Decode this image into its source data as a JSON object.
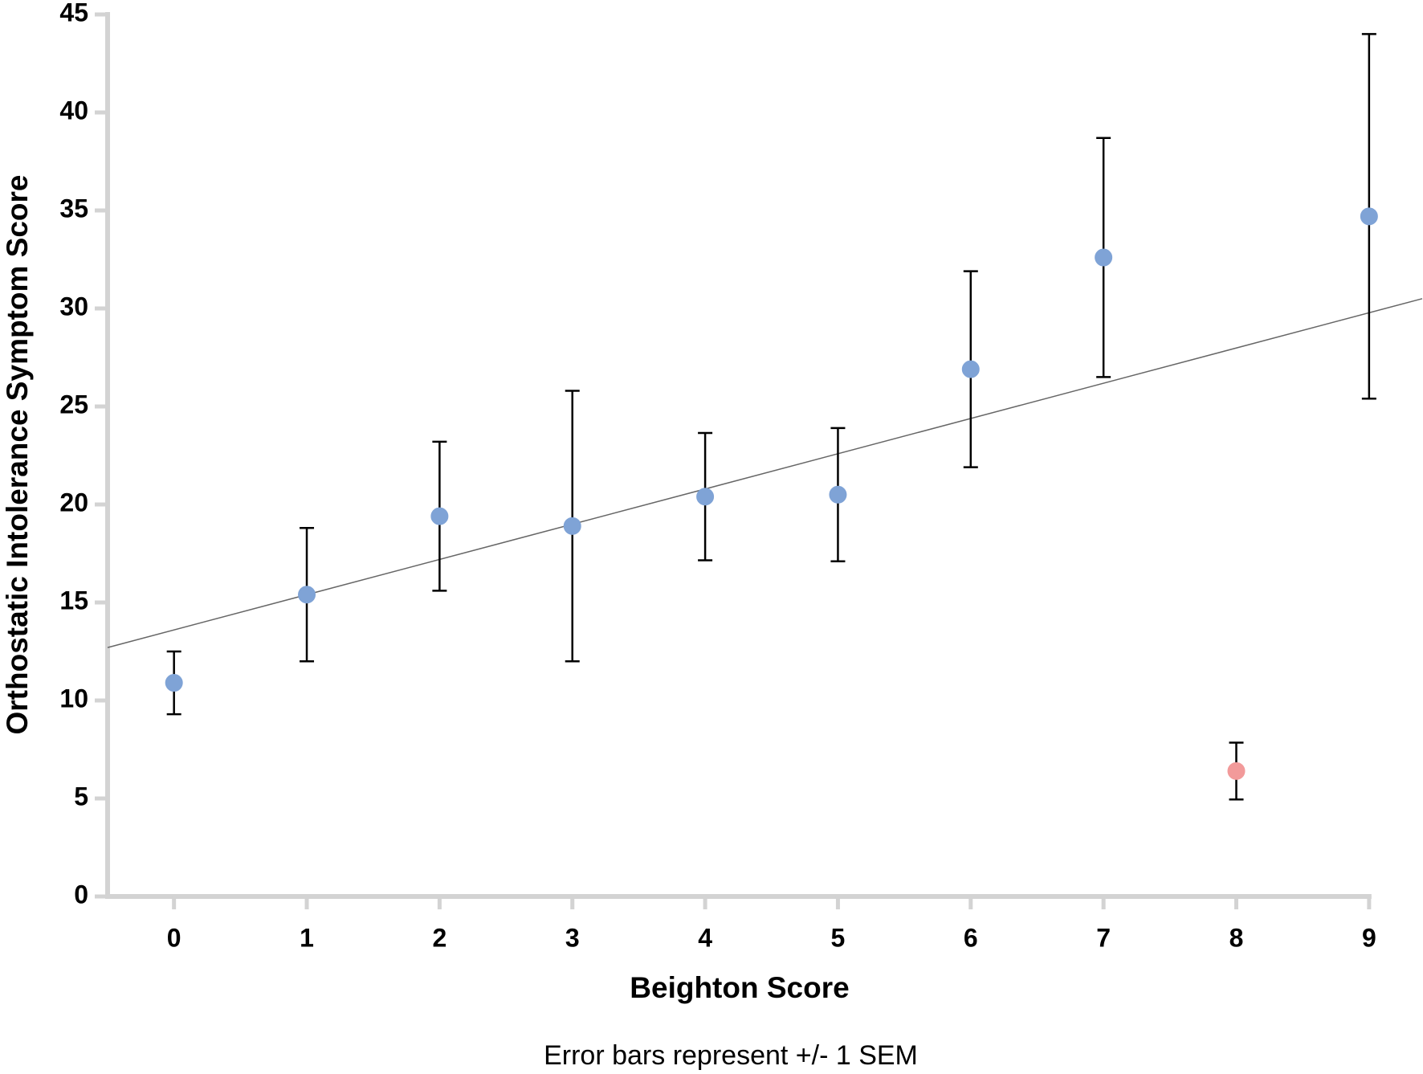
{
  "chart_data": {
    "type": "errorbar-scatter",
    "x_label": "Beighton Score",
    "y_label": "Orthostatic Intolerance Symptom Score",
    "annotation": "Error bars represent +/- 1 SEM",
    "x": [
      0,
      1,
      2,
      3,
      4,
      5,
      6,
      7,
      8,
      9
    ],
    "series": [
      {
        "values": [
          10.9,
          15.4,
          19.4,
          18.9,
          20.4,
          20.5,
          26.9,
          32.6,
          6.4,
          34.7
        ],
        "errors": [
          1.6,
          3.4,
          3.8,
          6.9,
          3.25,
          3.4,
          5.0,
          6.1,
          1.45,
          9.3
        ],
        "colors": [
          "#7fa3d6",
          "#7fa3d6",
          "#7fa3d6",
          "#7fa3d6",
          "#7fa3d6",
          "#7fa3d6",
          "#7fa3d6",
          "#7fa3d6",
          "#f29a9a",
          "#7fa3d6"
        ]
      }
    ],
    "trend_line": {
      "x": [
        -0.5,
        9.4
      ],
      "values": [
        12.7,
        30.5
      ],
      "color": "#666666"
    },
    "xlim": [
      -0.5,
      9.4
    ],
    "ylim": [
      0,
      45
    ],
    "xticks": [
      0,
      1,
      2,
      3,
      4,
      5,
      6,
      7,
      8,
      9
    ],
    "yticks": [
      0,
      5,
      10,
      15,
      20,
      25,
      30,
      35,
      40,
      45
    ],
    "grid": false
  }
}
